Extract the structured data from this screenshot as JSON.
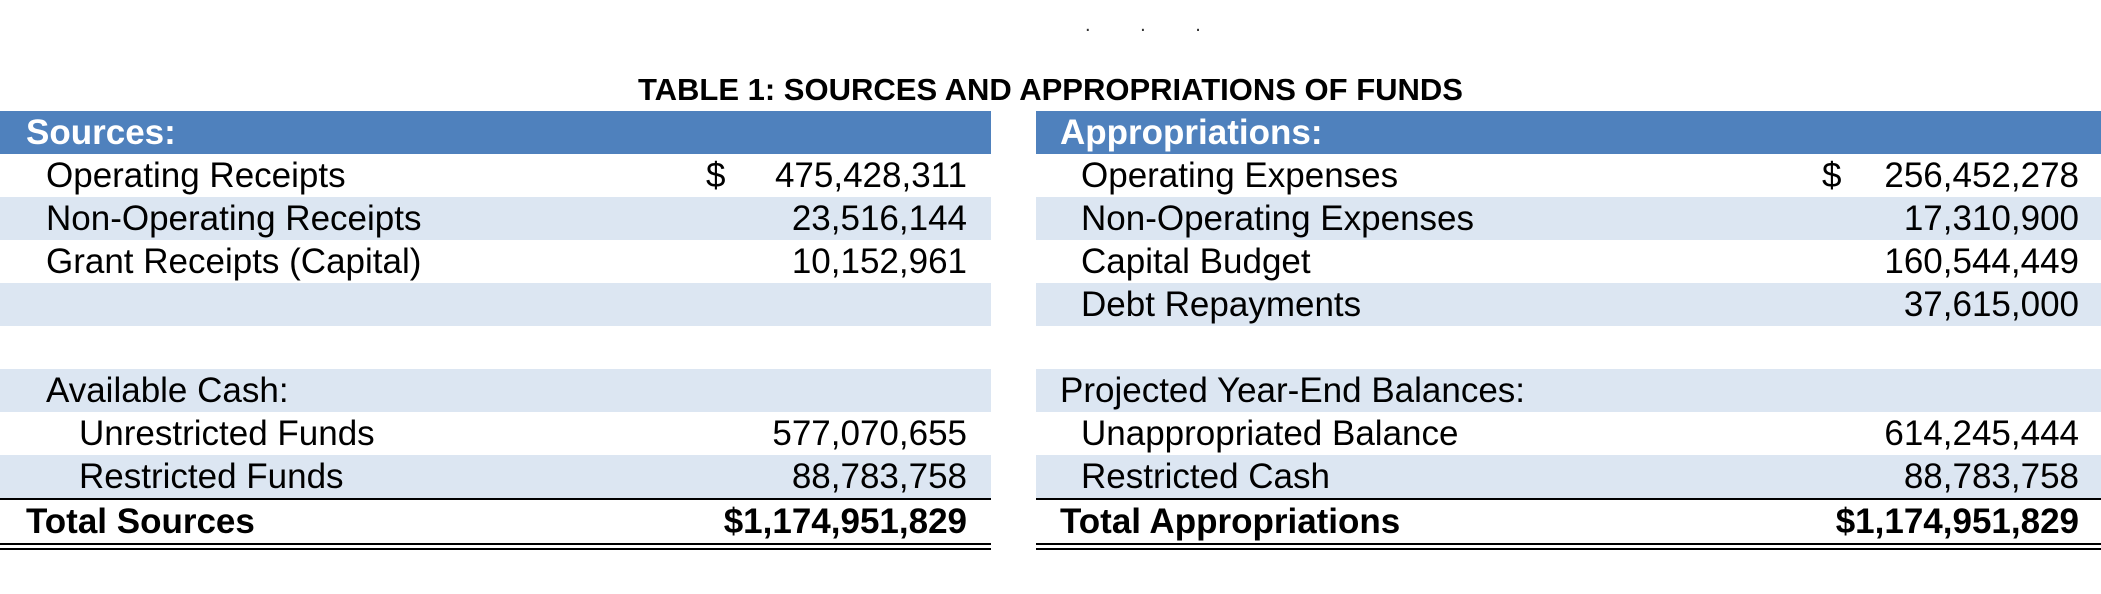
{
  "title": "TABLE 1: SOURCES AND APPROPRIATIONS OF FUNDS",
  "top_marks": ". .   .",
  "colors": {
    "header_bg": "#4f81bd",
    "shade_bg": "#dce6f2",
    "header_text": "#ffffff"
  },
  "sources": {
    "header": "Sources:",
    "operating_receipts": {
      "label": "Operating Receipts",
      "currency": "$",
      "value": "475,428,311"
    },
    "non_operating_receipts": {
      "label": "Non-Operating Receipts",
      "value": "23,516,144"
    },
    "grant_receipts": {
      "label": "Grant Receipts (Capital)",
      "value": "10,152,961"
    },
    "available_cash_label": "Available Cash:",
    "unrestricted_funds": {
      "label": "Unrestricted Funds",
      "value": "577,070,655"
    },
    "restricted_funds": {
      "label": "Restricted Funds",
      "value": "88,783,758"
    },
    "total": {
      "label": "Total Sources",
      "value": "$1,174,951,829"
    }
  },
  "appropriations": {
    "header": "Appropriations:",
    "operating_expenses": {
      "label": "Operating Expenses",
      "currency": "$",
      "value": "256,452,278"
    },
    "non_operating_expenses": {
      "label": "Non-Operating Expenses",
      "value": "17,310,900"
    },
    "capital_budget": {
      "label": "Capital Budget",
      "value": "160,544,449"
    },
    "debt_repayments": {
      "label": "Debt Repayments",
      "value": "37,615,000"
    },
    "projected_label": "Projected Year-End Balances:",
    "unappropriated_balance": {
      "label": "Unappropriated Balance",
      "value": "614,245,444"
    },
    "restricted_cash": {
      "label": "Restricted Cash",
      "value": "88,783,758"
    },
    "total": {
      "label": "Total Appropriations",
      "value": "$1,174,951,829"
    }
  }
}
